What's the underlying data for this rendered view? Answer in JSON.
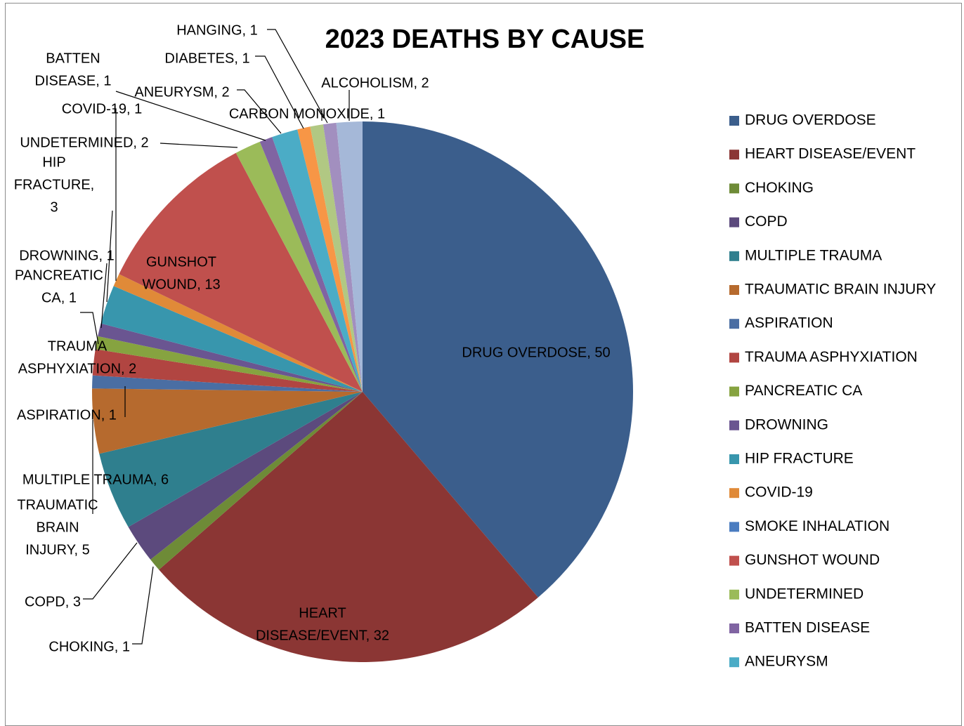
{
  "chart_data": {
    "type": "pie",
    "title": "2023 DEATHS BY CAUSE",
    "legend_position": "right",
    "slices": [
      {
        "name": "DRUG OVERDOSE",
        "value": 50,
        "color": "#3b5e8c",
        "label": [
          "DRUG OVERDOSE, 50"
        ]
      },
      {
        "name": "HEART DISEASE/EVENT",
        "value": 32,
        "color": "#8b3634",
        "label": [
          "HEART",
          "DISEASE/EVENT, 32"
        ]
      },
      {
        "name": "CHOKING",
        "value": 1,
        "color": "#6e8b37",
        "label": [
          "CHOKING, 1"
        ]
      },
      {
        "name": "COPD",
        "value": 3,
        "color": "#5c4a7d",
        "label": [
          "COPD, 3"
        ]
      },
      {
        "name": "MULTIPLE TRAUMA",
        "value": 6,
        "color": "#2f7f8e",
        "label": [
          "MULTIPLE TRAUMA, 6"
        ]
      },
      {
        "name": "TRAUMATIC BRAIN INJURY",
        "value": 5,
        "color": "#b66a2e",
        "label": [
          "TRAUMATIC",
          "BRAIN",
          "INJURY, 5"
        ]
      },
      {
        "name": "ASPIRATION",
        "value": 1,
        "color": "#4a6ea3",
        "label": [
          "ASPIRATION, 1"
        ]
      },
      {
        "name": "TRAUMA ASPHYXIATION",
        "value": 2,
        "color": "#b14541",
        "label": [
          "TRAUMA",
          "ASPHYXIATION, 2"
        ]
      },
      {
        "name": "PANCREATIC CA",
        "value": 1,
        "color": "#86a340",
        "label": [
          "PANCREATIC",
          "CA, 1"
        ]
      },
      {
        "name": "DROWNING",
        "value": 1,
        "color": "#6a5591",
        "label": [
          "DROWNING, 1"
        ]
      },
      {
        "name": "HIP FRACTURE",
        "value": 3,
        "color": "#3896ad",
        "label": [
          "HIP",
          "FRACTURE,",
          "3"
        ]
      },
      {
        "name": "COVID-19",
        "value": 1,
        "color": "#e08a38",
        "label": [
          "COVID-19, 1"
        ]
      },
      {
        "name": "SMOKE INHALATION",
        "value": 0,
        "color": "#4a7cc0",
        "label": []
      },
      {
        "name": "GUNSHOT WOUND",
        "value": 13,
        "color": "#c0504d",
        "label": [
          "GUNSHOT",
          "WOUND, 13"
        ]
      },
      {
        "name": "UNDETERMINED",
        "value": 2,
        "color": "#9bbb59",
        "label": [
          "UNDETERMINED, 2"
        ]
      },
      {
        "name": "BATTEN DISEASE",
        "value": 1,
        "color": "#8064a2",
        "label": [
          "BATTEN",
          "DISEASE, 1"
        ]
      },
      {
        "name": "ANEURYSM",
        "value": 2,
        "color": "#4bacc6",
        "label": [
          "ANEURYSM, 2"
        ]
      },
      {
        "name": "DIABETES",
        "value": 1,
        "color": "#f79646",
        "label": [
          "DIABETES, 1"
        ]
      },
      {
        "name": "CARBON MONOXIDE",
        "value": 1,
        "color": "#b1c883",
        "label": [
          "CARBON MONOXIDE, 1"
        ]
      },
      {
        "name": "HANGING",
        "value": 1,
        "color": "#a28fbf",
        "label": [
          "HANGING, 1"
        ]
      },
      {
        "name": "ALCOHOLISM",
        "value": 2,
        "color": "#a5b8d8",
        "label": [
          "ALCOHOLISM, 2"
        ]
      }
    ],
    "legend": [
      "DRUG OVERDOSE",
      "HEART DISEASE/EVENT",
      "CHOKING",
      "COPD",
      "MULTIPLE TRAUMA",
      "TRAUMATIC BRAIN INJURY",
      "ASPIRATION",
      "TRAUMA ASPHYXIATION",
      "PANCREATIC CA",
      "DROWNING",
      "HIP FRACTURE",
      "COVID-19",
      "SMOKE INHALATION",
      "GUNSHOT WOUND",
      "UNDETERMINED",
      "BATTEN DISEASE",
      "ANEURYSM"
    ]
  }
}
